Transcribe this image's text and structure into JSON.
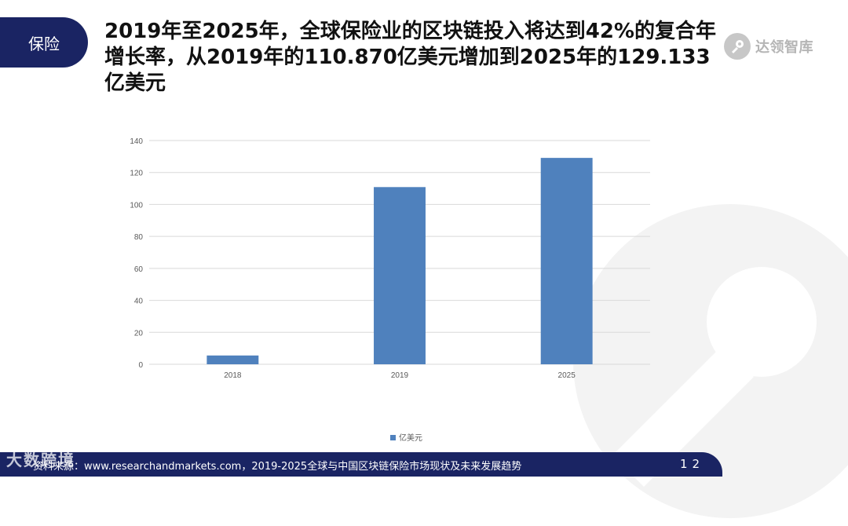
{
  "tag": "保险",
  "headline": "2019年至2025年，全球保险业的区块链投入将达到42%的复合年增长率，从2019年的110.870亿美元增加到2025年的129.133亿美元",
  "logo_text": "达领智库",
  "footer": {
    "source": "资料来源：www.researchandmarkets.com，2019-2025全球与中国区块链保险市场现状及未来发展趋势",
    "page": "12"
  },
  "watermark": "大数跨境",
  "colors": {
    "bar": "#4f81bd",
    "navy": "#1a2463"
  },
  "chart_data": {
    "type": "bar",
    "categories": [
      "2018",
      "2019",
      "2025"
    ],
    "series": [
      {
        "name": "亿美元",
        "values": [
          5.5,
          110.87,
          129.133
        ]
      }
    ],
    "ylim": [
      0,
      140
    ],
    "yticks": [
      0,
      20,
      40,
      60,
      80,
      100,
      120,
      140
    ],
    "grid": true,
    "legend": "bottom"
  }
}
